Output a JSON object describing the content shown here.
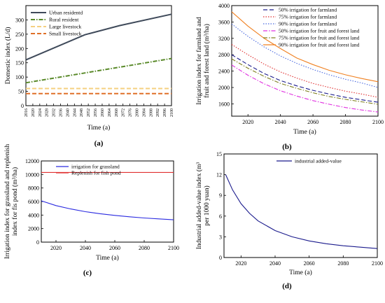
{
  "chart_data": [
    {
      "panel": "(a)",
      "type": "line",
      "xlabel": "Time (a)",
      "ylabel": "Domestic index (L/d)",
      "xlim": [
        2016,
        2100
      ],
      "ylim": [
        0,
        350
      ],
      "xticks": [
        "2016",
        "2020",
        "2024",
        "2028",
        "2032",
        "2036",
        "2040",
        "2044",
        "2048",
        "2052",
        "2056",
        "2060",
        "2064",
        "2068",
        "2072",
        "2076",
        "2080",
        "2084",
        "2088",
        "2092",
        "2096",
        "2100"
      ],
      "yticks": [
        "0",
        "50",
        "100",
        "150",
        "200",
        "250",
        "300"
      ],
      "legend_position": "top-left",
      "series": [
        {
          "name": "Urban residentd",
          "color": "#3f4a5a",
          "style": "solid",
          "x": [
            2016,
            2050,
            2070,
            2100
          ],
          "y": [
            160,
            248,
            280,
            320
          ]
        },
        {
          "name": "Rural resident",
          "color": "#5a8a2a",
          "style": "dashdot",
          "x": [
            2016,
            2100
          ],
          "y": [
            80,
            165
          ]
        },
        {
          "name": "Large livestock",
          "color": "#f5d080",
          "style": "dashed",
          "x": [
            2016,
            2100
          ],
          "y": [
            60,
            60
          ]
        },
        {
          "name": "Small livestock",
          "color": "#e07028",
          "style": "dashed",
          "x": [
            2016,
            2100
          ],
          "y": [
            42,
            42
          ]
        }
      ]
    },
    {
      "panel": "(b)",
      "type": "line",
      "xlabel": "Time (a)",
      "ylabel": "Irrigation index for farmland and fruit and forest land (m³/ha)",
      "xlim": [
        2010,
        2100
      ],
      "ylim": [
        1300,
        4000
      ],
      "xticks": [
        "2020",
        "2040",
        "2060",
        "2080",
        "2100"
      ],
      "yticks": [
        "1600",
        "2000",
        "2400",
        "2800",
        "3200",
        "3600",
        "4000"
      ],
      "legend_position": "top-right",
      "series": [
        {
          "name": "50% irrigation for farmland",
          "color": "#1a1a8c",
          "style": "dashed",
          "x": [
            2010,
            2020,
            2030,
            2040,
            2050,
            2060,
            2070,
            2080,
            2090,
            2100
          ],
          "y": [
            2800,
            2560,
            2340,
            2170,
            2040,
            1930,
            1840,
            1760,
            1700,
            1640
          ]
        },
        {
          "name": "75% irrigation for farmland",
          "color": "#e03030",
          "style": "dotted",
          "x": [
            2010,
            2020,
            2030,
            2040,
            2050,
            2060,
            2070,
            2080,
            2090,
            2100
          ],
          "y": [
            3050,
            2800,
            2570,
            2380,
            2230,
            2100,
            2000,
            1910,
            1840,
            1760
          ]
        },
        {
          "name": "90% irrigation for farmland",
          "color": "#4a6ae0",
          "style": "dotted",
          "x": [
            2010,
            2020,
            2030,
            2040,
            2050,
            2060,
            2070,
            2080,
            2090,
            2100
          ],
          "y": [
            3550,
            3250,
            2990,
            2770,
            2590,
            2440,
            2310,
            2200,
            2110,
            2000
          ]
        },
        {
          "name": "50% irrigation for fruit and forest land",
          "color": "#e030e0",
          "style": "dashdot",
          "x": [
            2010,
            2020,
            2030,
            2040,
            2050,
            2060,
            2070,
            2080,
            2090,
            2100
          ],
          "y": [
            2550,
            2300,
            2090,
            1920,
            1790,
            1680,
            1590,
            1510,
            1450,
            1400
          ]
        },
        {
          "name": "75% irrigation for fruit and forest land",
          "color": "#808020",
          "style": "dashdot",
          "x": [
            2010,
            2020,
            2030,
            2040,
            2050,
            2060,
            2070,
            2080,
            2090,
            2100
          ],
          "y": [
            2700,
            2470,
            2270,
            2100,
            1980,
            1870,
            1780,
            1710,
            1650,
            1590
          ]
        },
        {
          "name": "90% irrigation for fruit and forest land",
          "color": "#f08020",
          "style": "solid",
          "x": [
            2010,
            2020,
            2030,
            2040,
            2050,
            2060,
            2070,
            2080,
            2090,
            2100
          ],
          "y": [
            3850,
            3500,
            3200,
            2950,
            2720,
            2560,
            2420,
            2310,
            2220,
            2140
          ]
        }
      ]
    },
    {
      "panel": "(c)",
      "type": "line",
      "xlabel": "Time (a)",
      "ylabel": "Irrigation index for grassland and replenish index for fis pond (m³/ha)",
      "xlim": [
        2010,
        2100
      ],
      "ylim": [
        0,
        12000
      ],
      "xticks": [
        "2020",
        "2040",
        "2060",
        "2080",
        "2100"
      ],
      "yticks": [
        "0",
        "2000",
        "4000",
        "6000",
        "8000",
        "10000",
        "12000"
      ],
      "legend_position": "top-right",
      "series": [
        {
          "name": "irrigation for grassland",
          "color": "#2a2ae0",
          "style": "solid",
          "x": [
            2010,
            2020,
            2030,
            2040,
            2050,
            2060,
            2070,
            2080,
            2090,
            2100
          ],
          "y": [
            6100,
            5400,
            4900,
            4500,
            4200,
            3950,
            3750,
            3570,
            3430,
            3300
          ]
        },
        {
          "name": "Replenish for fish pond",
          "color": "#e03030",
          "style": "solid",
          "x": [
            2010,
            2100
          ],
          "y": [
            10300,
            10300
          ]
        }
      ]
    },
    {
      "panel": "(d)",
      "type": "line",
      "xlabel": "Time (a)",
      "ylabel": "Industrial added-value index (m³ per 1000 yuan)",
      "xlim": [
        2010,
        2100
      ],
      "ylim": [
        0,
        15
      ],
      "xticks": [
        "2020",
        "2040",
        "2060",
        "2080",
        "2100"
      ],
      "yticks": [
        "0",
        "3",
        "6",
        "9",
        "12",
        "15"
      ],
      "legend_position": "top-right",
      "series": [
        {
          "name": "industrial added-value",
          "color": "#1a1a8c",
          "style": "solid",
          "x": [
            2011,
            2015,
            2020,
            2025,
            2030,
            2040,
            2050,
            2060,
            2070,
            2080,
            2090,
            2100
          ],
          "y": [
            12,
            9.8,
            7.8,
            6.4,
            5.3,
            3.9,
            3.0,
            2.4,
            2.0,
            1.7,
            1.5,
            1.3
          ]
        }
      ]
    }
  ]
}
